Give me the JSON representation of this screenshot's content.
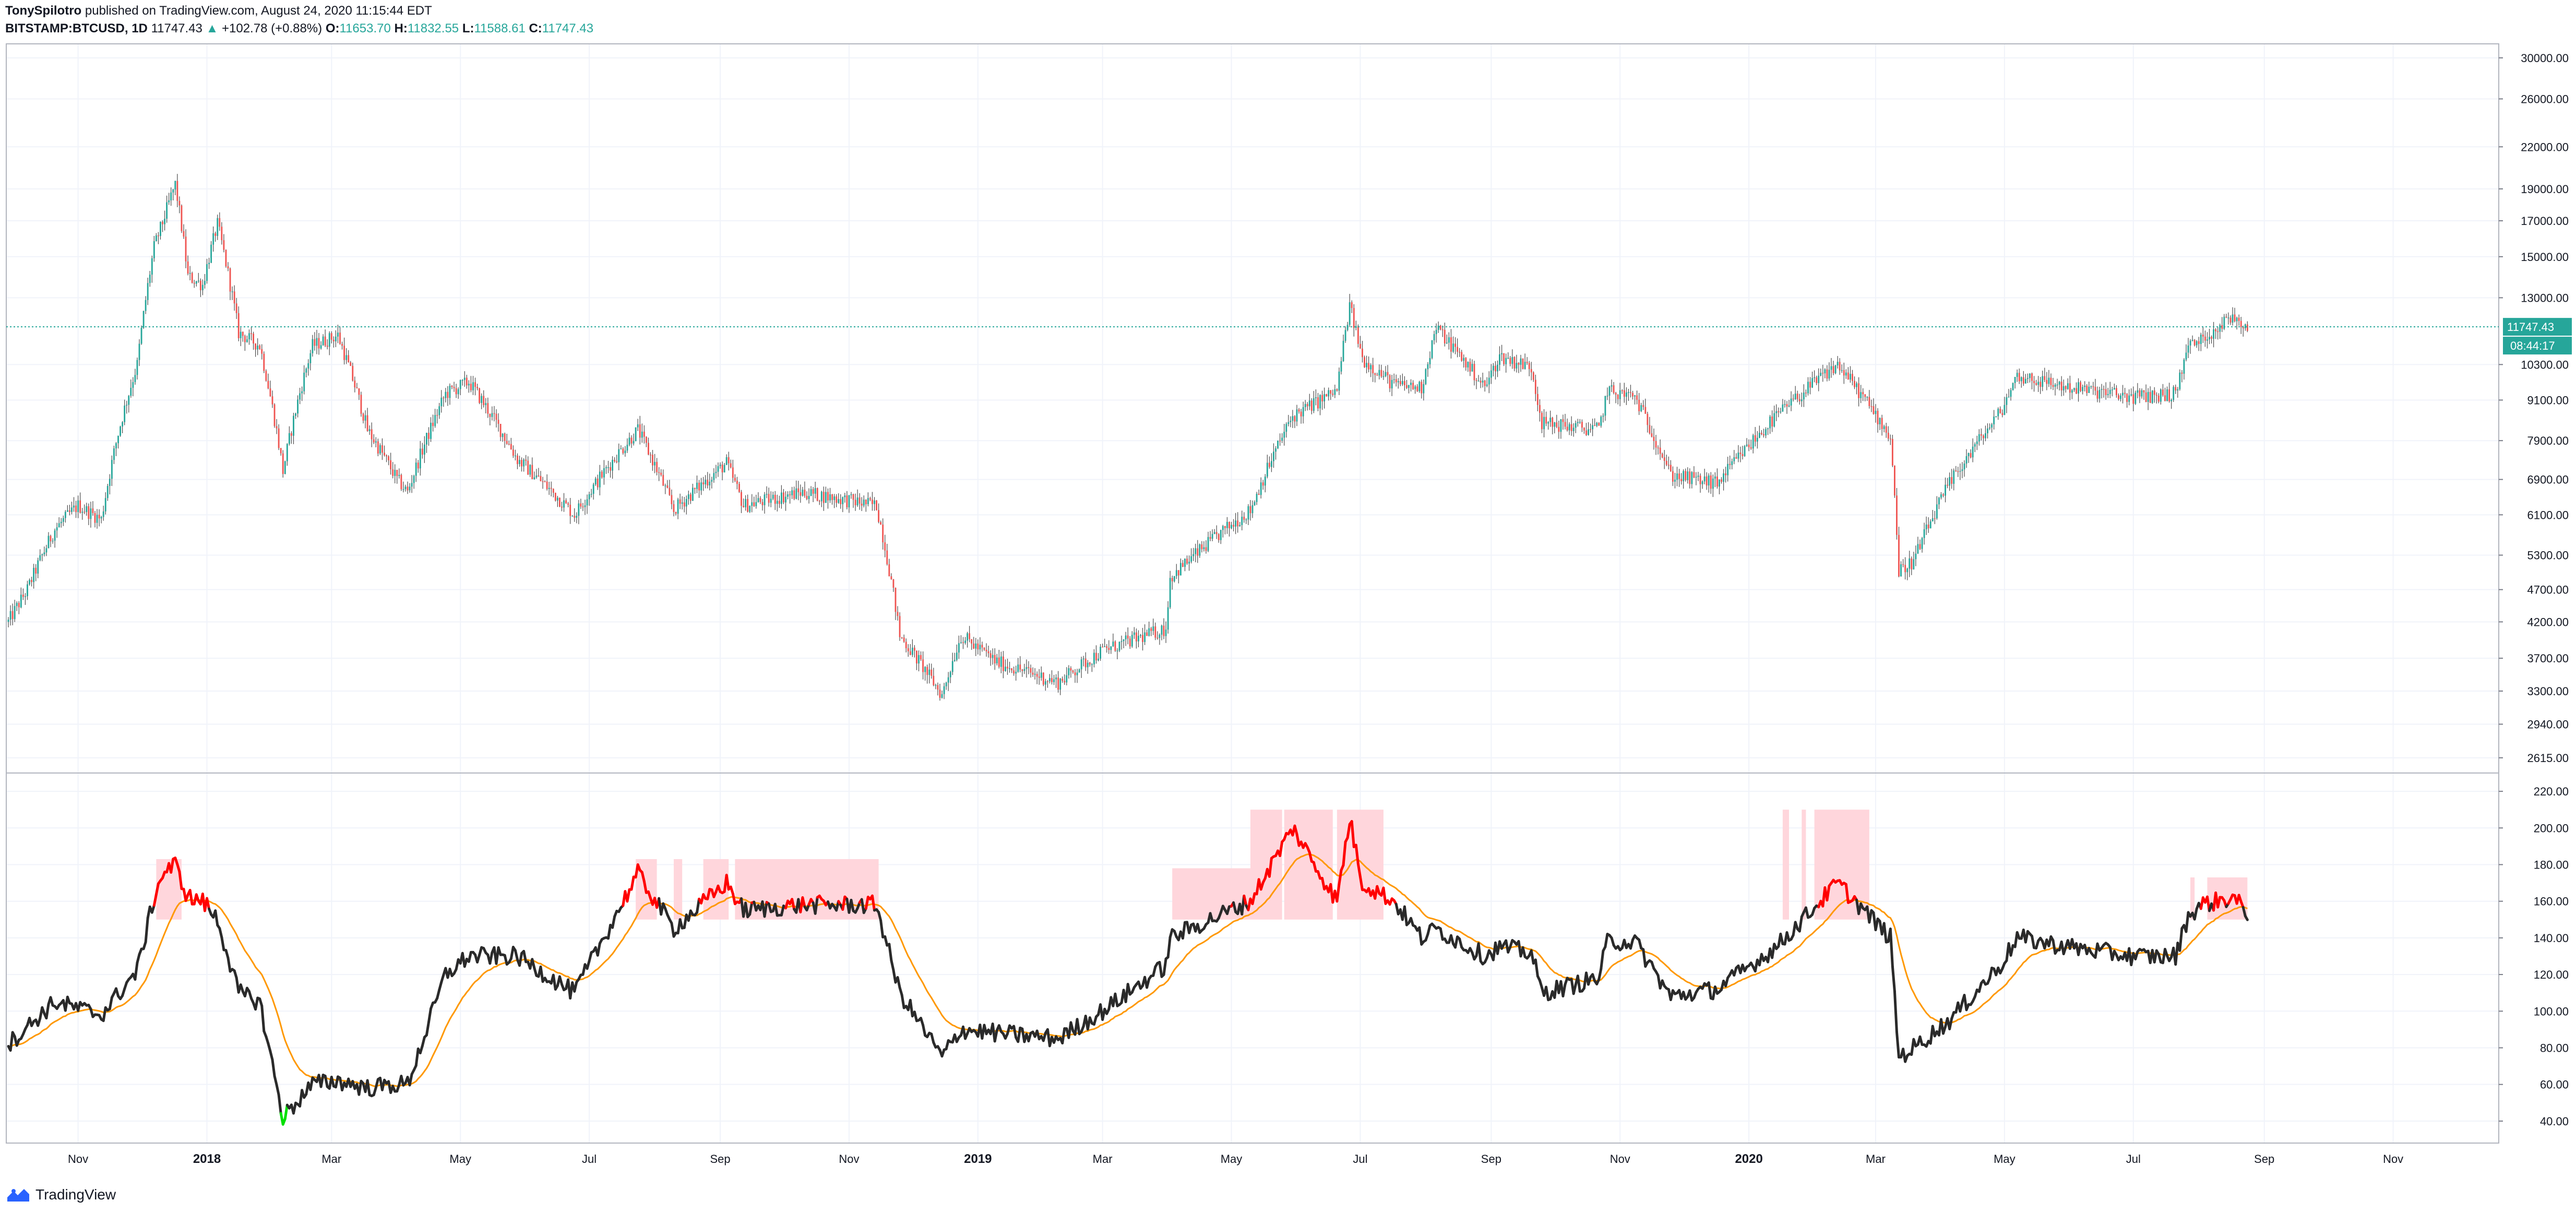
{
  "header": {
    "author": "TonySpilotro",
    "published_text": "published on TradingView.com, August 24, 2020 11:15:44 EDT",
    "symbol": "BITSTAMP:BTCUSD, 1D",
    "last": "11747.43",
    "change": "+102.78 (+0.88%)",
    "o_label": "O:",
    "o": "11653.70",
    "h_label": "H:",
    "h": "11832.55",
    "l_label": "L:",
    "l": "11588.61",
    "c_label": "C:",
    "c": "11747.43"
  },
  "price_badge": "11747.43",
  "time_badge": "08:44:17",
  "footer": {
    "brand": "TradingView"
  },
  "colors": {
    "up": "#26a69a",
    "down": "#ef5350",
    "indicator": "#2a2a2a",
    "indicator_hot": "#ff0000",
    "indicator_cold": "#00e000",
    "ma": "#ff9800",
    "zone": "#ffd6dc",
    "price_line": "#26a69a"
  },
  "chart_data": [
    {
      "type": "candlestick",
      "log_scale": true,
      "ylim": [
        2480,
        31500
      ],
      "y_ticks": [
        "30000.00",
        "26000.00",
        "22000.00",
        "19000.00",
        "17000.00",
        "15000.00",
        "13000.00",
        "10300.00",
        "9100.00",
        "7900.00",
        "6900.00",
        "6100.00",
        "5300.00",
        "4700.00",
        "4200.00",
        "3700.00",
        "3300.00",
        "2940.00",
        "2615.00"
      ],
      "last_price": 11747.43,
      "anchors": [
        [
          "2017-09-29",
          4200
        ],
        [
          "2017-10-08",
          4700
        ],
        [
          "2017-10-21",
          5800
        ],
        [
          "2017-11-01",
          6300
        ],
        [
          "2017-11-12",
          6000
        ],
        [
          "2017-11-20",
          8100
        ],
        [
          "2017-11-29",
          10300
        ],
        [
          "2017-12-07",
          15500
        ],
        [
          "2017-12-11",
          16900
        ],
        [
          "2017-12-17",
          19300
        ],
        [
          "2017-12-23",
          14000
        ],
        [
          "2017-12-30",
          13600
        ],
        [
          "2018-01-06",
          16800
        ],
        [
          "2018-01-16",
          11500
        ],
        [
          "2018-01-26",
          11000
        ],
        [
          "2018-02-06",
          7100
        ],
        [
          "2018-02-20",
          11000
        ],
        [
          "2018-03-04",
          11400
        ],
        [
          "2018-03-18",
          8200
        ],
        [
          "2018-04-01",
          6900
        ],
        [
          "2018-04-06",
          6600
        ],
        [
          "2018-04-24",
          9300
        ],
        [
          "2018-05-05",
          9700
        ],
        [
          "2018-05-28",
          7400
        ],
        [
          "2018-06-24",
          6100
        ],
        [
          "2018-07-24",
          8200
        ],
        [
          "2018-08-10",
          6200
        ],
        [
          "2018-09-04",
          7300
        ],
        [
          "2018-09-12",
          6300
        ],
        [
          "2018-10-10",
          6600
        ],
        [
          "2018-11-14",
          6300
        ],
        [
          "2018-11-25",
          4000
        ],
        [
          "2018-12-15",
          3250
        ],
        [
          "2018-12-24",
          4000
        ],
        [
          "2019-01-10",
          3650
        ],
        [
          "2019-02-08",
          3400
        ],
        [
          "2019-03-01",
          3800
        ],
        [
          "2019-03-31",
          4100
        ],
        [
          "2019-04-02",
          4900
        ],
        [
          "2019-05-10",
          6200
        ],
        [
          "2019-05-30",
          8600
        ],
        [
          "2019-06-20",
          9400
        ],
        [
          "2019-06-26",
          12600
        ],
        [
          "2019-07-02",
          10500
        ],
        [
          "2019-07-17",
          9600
        ],
        [
          "2019-07-30",
          9500
        ],
        [
          "2019-08-06",
          11700
        ],
        [
          "2019-08-29",
          9500
        ],
        [
          "2019-09-05",
          10600
        ],
        [
          "2019-09-20",
          10200
        ],
        [
          "2019-09-25",
          8400
        ],
        [
          "2019-10-22",
          8200
        ],
        [
          "2019-10-26",
          9400
        ],
        [
          "2019-11-08",
          9200
        ],
        [
          "2019-11-25",
          7000
        ],
        [
          "2019-12-17",
          6800
        ],
        [
          "2020-01-14",
          8600
        ],
        [
          "2020-02-12",
          10300
        ],
        [
          "2020-03-08",
          8000
        ],
        [
          "2020-03-12",
          5000
        ],
        [
          "2020-03-19",
          5200
        ],
        [
          "2020-04-05",
          6800
        ],
        [
          "2020-04-29",
          8700
        ],
        [
          "2020-05-07",
          9900
        ],
        [
          "2020-06-01",
          9500
        ],
        [
          "2020-07-01",
          9200
        ],
        [
          "2020-07-21",
          9300
        ],
        [
          "2020-07-27",
          11000
        ],
        [
          "2020-08-02",
          11200
        ],
        [
          "2020-08-17",
          12200
        ],
        [
          "2020-08-24",
          11747
        ]
      ]
    },
    {
      "type": "line",
      "y_ticks": [
        "220.00",
        "200.00",
        "180.00",
        "160.00",
        "140.00",
        "120.00",
        "100.00",
        "80.00",
        "60.00",
        "40.00"
      ],
      "ylim": [
        28,
        230
      ],
      "threshold_hot": 158,
      "threshold_cold": 45,
      "anchors": [
        [
          "2017-09-29",
          82
        ],
        [
          "2017-10-21",
          105
        ],
        [
          "2017-11-12",
          98
        ],
        [
          "2017-11-29",
          122
        ],
        [
          "2017-12-07",
          162
        ],
        [
          "2017-12-11",
          175
        ],
        [
          "2017-12-17",
          180
        ],
        [
          "2017-12-23",
          162
        ],
        [
          "2017-12-30",
          160
        ],
        [
          "2018-01-06",
          150
        ],
        [
          "2018-01-16",
          110
        ],
        [
          "2018-01-26",
          105
        ],
        [
          "2018-02-06",
          42
        ],
        [
          "2018-02-20",
          60
        ],
        [
          "2018-03-04",
          62
        ],
        [
          "2018-03-18",
          58
        ],
        [
          "2018-04-01",
          60
        ],
        [
          "2018-04-06",
          60
        ],
        [
          "2018-04-24",
          120
        ],
        [
          "2018-05-05",
          130
        ],
        [
          "2018-05-28",
          130
        ],
        [
          "2018-06-24",
          110
        ],
        [
          "2018-07-24",
          175
        ],
        [
          "2018-08-10",
          145
        ],
        [
          "2018-09-04",
          170
        ],
        [
          "2018-09-12",
          155
        ],
        [
          "2018-10-10",
          158
        ],
        [
          "2018-11-14",
          158
        ],
        [
          "2018-11-25",
          110
        ],
        [
          "2018-12-15",
          75
        ],
        [
          "2018-12-24",
          90
        ],
        [
          "2019-01-10",
          88
        ],
        [
          "2019-02-08",
          85
        ],
        [
          "2019-03-01",
          100
        ],
        [
          "2019-03-31",
          125
        ],
        [
          "2019-04-02",
          140
        ],
        [
          "2019-05-10",
          160
        ],
        [
          "2019-05-30",
          200
        ],
        [
          "2019-06-20",
          160
        ],
        [
          "2019-06-26",
          205
        ],
        [
          "2019-07-02",
          170
        ],
        [
          "2019-07-17",
          160
        ],
        [
          "2019-07-30",
          140
        ],
        [
          "2019-08-06",
          145
        ],
        [
          "2019-08-29",
          130
        ],
        [
          "2019-09-05",
          135
        ],
        [
          "2019-09-20",
          132
        ],
        [
          "2019-09-25",
          110
        ],
        [
          "2019-10-22",
          118
        ],
        [
          "2019-10-26",
          138
        ],
        [
          "2019-11-08",
          138
        ],
        [
          "2019-11-25",
          108
        ],
        [
          "2019-12-17",
          112
        ],
        [
          "2020-01-14",
          135
        ],
        [
          "2020-02-12",
          170
        ],
        [
          "2020-03-08",
          140
        ],
        [
          "2020-03-12",
          75
        ],
        [
          "2020-03-19",
          80
        ],
        [
          "2020-04-05",
          95
        ],
        [
          "2020-04-29",
          125
        ],
        [
          "2020-05-07",
          140
        ],
        [
          "2020-06-01",
          135
        ],
        [
          "2020-07-01",
          130
        ],
        [
          "2020-07-21",
          130
        ],
        [
          "2020-07-27",
          152
        ],
        [
          "2020-08-02",
          158
        ],
        [
          "2020-08-17",
          162
        ],
        [
          "2020-08-24",
          154
        ]
      ],
      "zones": [
        [
          "2017-12-08",
          "2017-12-20",
          150,
          183
        ],
        [
          "2018-07-23",
          "2018-08-02",
          150,
          183
        ],
        [
          "2018-08-10",
          "2018-08-14",
          150,
          183
        ],
        [
          "2018-08-24",
          "2018-09-05",
          150,
          183
        ],
        [
          "2018-09-08",
          "2018-11-15",
          150,
          183
        ],
        [
          "2019-04-03",
          "2019-05-10",
          150,
          178
        ],
        [
          "2019-05-10",
          "2019-05-25",
          150,
          210
        ],
        [
          "2019-05-26",
          "2019-06-18",
          150,
          210
        ],
        [
          "2019-06-20",
          "2019-07-12",
          150,
          210
        ],
        [
          "2020-01-17",
          "2020-01-20",
          150,
          210
        ],
        [
          "2020-01-26",
          "2020-01-28",
          150,
          210
        ],
        [
          "2020-02-01",
          "2020-02-27",
          150,
          210
        ],
        [
          "2020-07-28",
          "2020-07-30",
          150,
          173
        ],
        [
          "2020-08-05",
          "2020-08-24",
          150,
          173
        ]
      ]
    }
  ],
  "x_axis": {
    "labels": [
      {
        "date": "2017-11-01",
        "text": "Nov",
        "bold": false
      },
      {
        "date": "2018-01-01",
        "text": "2018",
        "bold": true
      },
      {
        "date": "2018-03-01",
        "text": "Mar",
        "bold": false
      },
      {
        "date": "2018-05-01",
        "text": "May",
        "bold": false
      },
      {
        "date": "2018-07-01",
        "text": "Jul",
        "bold": false
      },
      {
        "date": "2018-09-01",
        "text": "Sep",
        "bold": false
      },
      {
        "date": "2018-11-01",
        "text": "Nov",
        "bold": false
      },
      {
        "date": "2019-01-01",
        "text": "2019",
        "bold": true
      },
      {
        "date": "2019-03-01",
        "text": "Mar",
        "bold": false
      },
      {
        "date": "2019-05-01",
        "text": "May",
        "bold": false
      },
      {
        "date": "2019-07-01",
        "text": "Jul",
        "bold": false
      },
      {
        "date": "2019-09-01",
        "text": "Sep",
        "bold": false
      },
      {
        "date": "2019-11-01",
        "text": "Nov",
        "bold": false
      },
      {
        "date": "2020-01-01",
        "text": "2020",
        "bold": true
      },
      {
        "date": "2020-03-01",
        "text": "Mar",
        "bold": false
      },
      {
        "date": "2020-05-01",
        "text": "May",
        "bold": false
      },
      {
        "date": "2020-07-01",
        "text": "Jul",
        "bold": false
      },
      {
        "date": "2020-09-01",
        "text": "Sep",
        "bold": false
      },
      {
        "date": "2020-11-01",
        "text": "Nov",
        "bold": false
      }
    ]
  }
}
